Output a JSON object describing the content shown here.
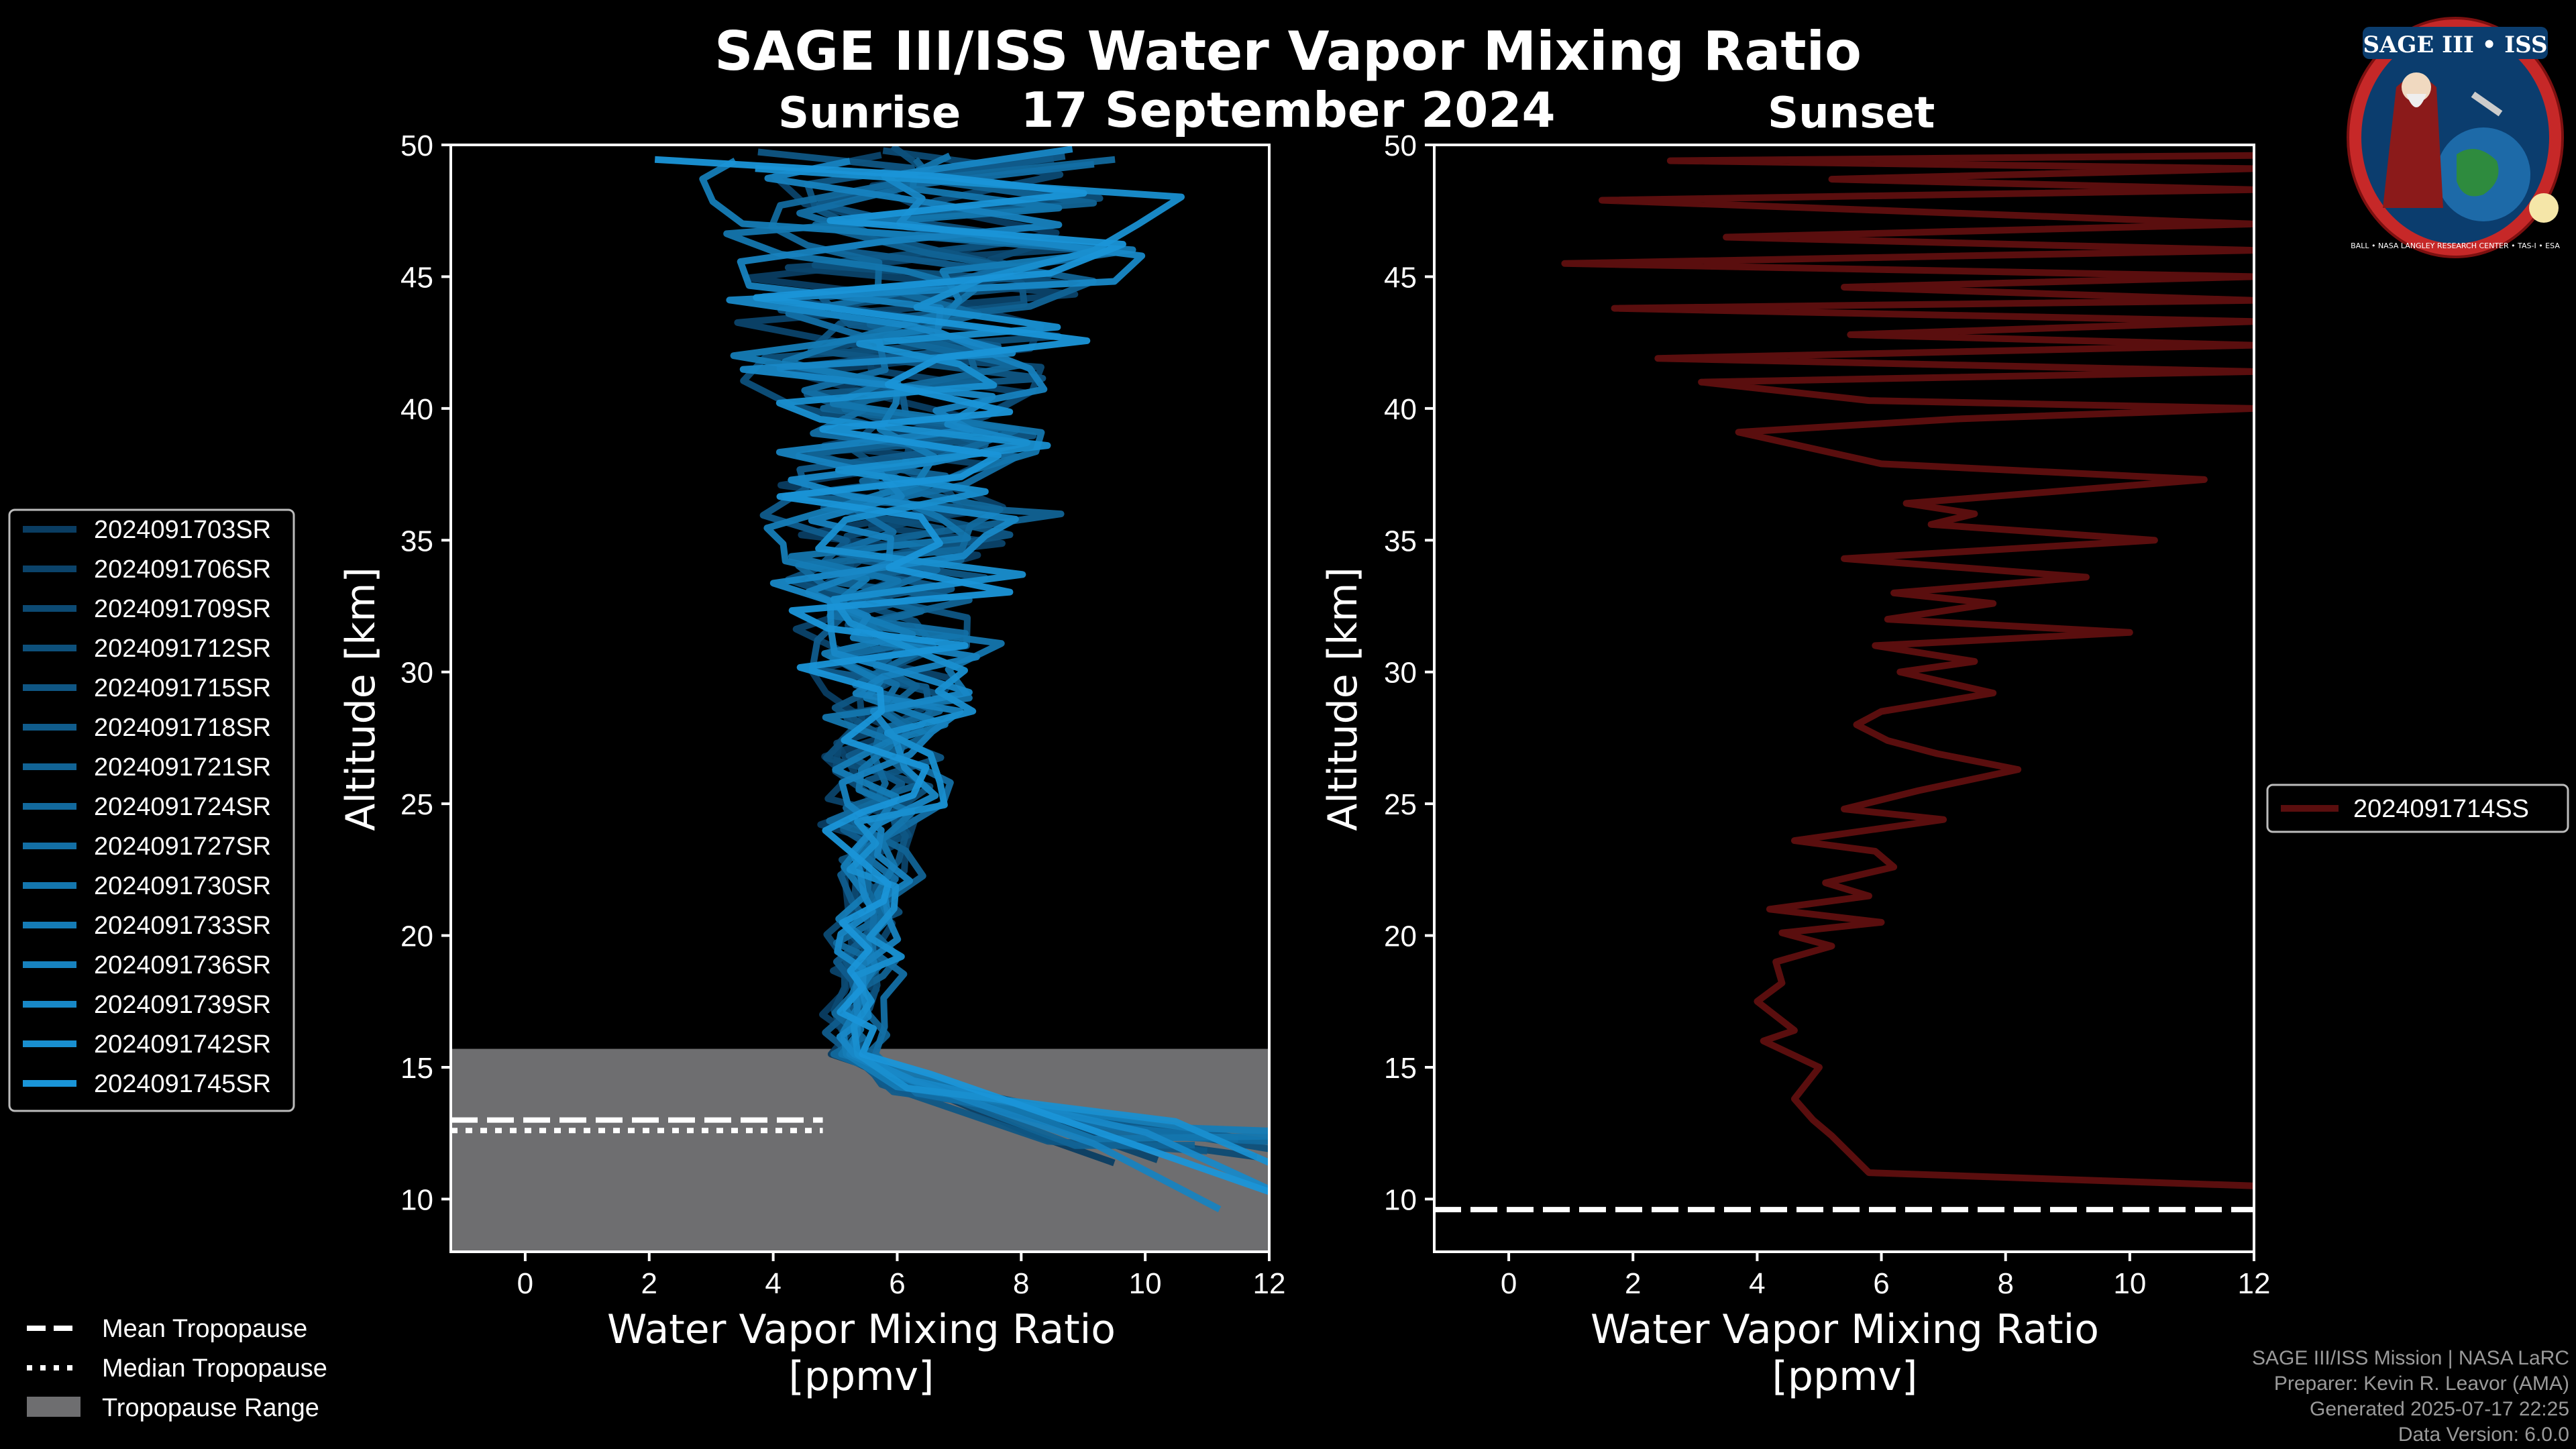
{
  "header": {
    "title": "SAGE III/ISS Water Vapor Mixing Ratio",
    "date": "17 September 2024",
    "left_label": "Sunrise",
    "right_label": "Sunset"
  },
  "logo": {
    "text": "SAGE III • ISS",
    "ring_text": "BALL • NASA LANGLEY RESEARCH CENTER • TAS-I • ESA"
  },
  "credits": {
    "line1": "SAGE III/ISS Mission | NASA LaRC",
    "line2": "Preparer: Kevin R. Leavor (AMA)",
    "line3": "Generated 2025-07-17 22:25",
    "line4": "Data Version: 6.0.0"
  },
  "tropopause_legend": {
    "mean": "Mean Tropopause",
    "median": "Median Tropopause",
    "range": "Tropopause Range"
  },
  "colors": {
    "background": "#000000",
    "sunrise_dark": "#0a3d62",
    "sunrise_light": "#1a95d8",
    "sunset": "#5a0e0e",
    "tropopause_range": "#6e6e70"
  },
  "chart_data": [
    {
      "type": "line",
      "panel": "sunrise",
      "title": "Sunrise",
      "xlabel": "Water Vapor Mixing Ratio\n[ppmv]",
      "xlabel_line1": "Water Vapor Mixing Ratio",
      "xlabel_line2": "[ppmv]",
      "ylabel": "Altitude [km]",
      "xlim": [
        -1.2,
        12
      ],
      "ylim": [
        8,
        50
      ],
      "xticks": [
        0,
        2,
        4,
        6,
        8,
        10,
        12
      ],
      "yticks": [
        10,
        15,
        20,
        25,
        30,
        35,
        40,
        45,
        50
      ],
      "tropopause": {
        "mean": 13.0,
        "median": 12.6,
        "range": [
          8,
          15.7
        ]
      },
      "series": [
        {
          "name": "2024091703SR",
          "surface": 9.5,
          "base": 3.8,
          "amp": 1.0
        },
        {
          "name": "2024091706SR",
          "surface": 10.2,
          "base": 4.0,
          "amp": 1.2
        },
        {
          "name": "2024091709SR",
          "surface": 11.8,
          "base": 3.9,
          "amp": 1.1
        },
        {
          "name": "2024091712SR",
          "surface": 12.5,
          "base": 4.1,
          "amp": 1.3
        },
        {
          "name": "2024091715SR",
          "surface": 11.0,
          "base": 4.2,
          "amp": 1.0
        },
        {
          "name": "2024091718SR",
          "surface": 12.8,
          "base": 3.8,
          "amp": 1.2
        },
        {
          "name": "2024091721SR",
          "surface": 10.8,
          "base": 4.3,
          "amp": 1.4
        },
        {
          "name": "2024091724SR",
          "surface": 12.2,
          "base": 4.0,
          "amp": 1.1
        },
        {
          "name": "2024091727SR",
          "surface": 11.5,
          "base": 4.4,
          "amp": 1.2
        },
        {
          "name": "2024091730SR",
          "surface": 12.0,
          "base": 4.1,
          "amp": 1.5
        },
        {
          "name": "2024091733SR",
          "surface": 13.0,
          "base": 3.9,
          "amp": 1.3
        },
        {
          "name": "2024091736SR",
          "surface": 11.2,
          "base": 4.2,
          "amp": 1.2
        },
        {
          "name": "2024091739SR",
          "surface": 12.6,
          "base": 4.0,
          "amp": 1.4
        },
        {
          "name": "2024091742SR",
          "surface": 13.5,
          "base": 4.3,
          "amp": 1.3
        },
        {
          "name": "2024091745SR",
          "surface": 12.4,
          "base": 4.1,
          "amp": 1.5
        }
      ]
    },
    {
      "type": "line",
      "panel": "sunset",
      "title": "Sunset",
      "xlabel_line1": "Water Vapor Mixing Ratio",
      "xlabel_line2": "[ppmv]",
      "ylabel": "Altitude [km]",
      "xlim": [
        -1.2,
        12
      ],
      "ylim": [
        8,
        50
      ],
      "xticks": [
        0,
        2,
        4,
        6,
        8,
        10,
        12
      ],
      "yticks": [
        10,
        15,
        20,
        25,
        30,
        35,
        40,
        45,
        50
      ],
      "tropopause": {
        "mean": 9.6,
        "median": 9.6
      },
      "series": [
        {
          "name": "2024091714SS",
          "x": [
            12,
            5.8,
            5.2,
            4.9,
            4.6,
            5.0,
            4.1,
            4.6,
            4.0,
            4.4,
            4.3,
            5.2,
            4.4,
            6.0,
            4.2,
            5.8,
            5.1,
            6.2,
            5.9,
            4.6,
            7.0,
            5.4,
            6.6,
            8.2,
            6.9,
            6.1,
            5.6,
            6.0,
            7.8,
            6.3,
            7.5,
            5.9,
            10.0,
            6.1,
            7.8,
            6.2,
            9.3,
            5.4,
            10.4,
            6.8,
            7.5,
            6.4,
            11.2,
            6.0,
            3.7,
            7.2,
            12,
            5.8,
            3.1,
            12,
            2.4,
            12,
            5.5,
            12,
            1.7,
            12,
            5.4,
            12,
            0.9,
            12,
            3.5,
            12,
            1.5,
            12,
            5.2,
            12,
            2.6,
            12
          ],
          "y": [
            10.5,
            11.0,
            12.4,
            13.0,
            13.8,
            15.0,
            16.0,
            16.4,
            17.5,
            18.2,
            19.0,
            19.6,
            20.1,
            20.5,
            21.0,
            21.5,
            22.0,
            22.6,
            23.2,
            23.6,
            24.4,
            24.8,
            25.5,
            26.3,
            26.9,
            27.4,
            28.0,
            28.5,
            29.2,
            30.0,
            30.4,
            31.0,
            31.5,
            32.0,
            32.6,
            33.0,
            33.6,
            34.3,
            35.0,
            35.6,
            36.0,
            36.4,
            37.3,
            37.9,
            39.1,
            39.6,
            40.0,
            40.3,
            41.0,
            41.4,
            41.9,
            42.4,
            42.8,
            43.3,
            43.8,
            44.1,
            44.6,
            45.0,
            45.5,
            46.0,
            46.5,
            47.0,
            47.9,
            48.3,
            48.7,
            49.1,
            49.4,
            49.6
          ]
        }
      ]
    }
  ]
}
